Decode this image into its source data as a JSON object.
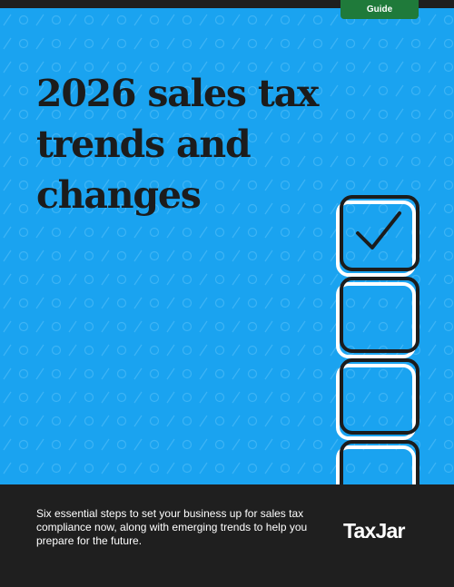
{
  "badge": {
    "label": "Guide"
  },
  "title": {
    "lines": [
      "2026 sales tax",
      "trends and",
      "changes"
    ]
  },
  "footer": {
    "description": "Six essential steps to set your business up for sales tax compliance now, along with emerging trends to help you prepare for the future.",
    "logo": "TaxJar"
  },
  "colors": {
    "hero_background": "#1aa3f0",
    "footer_background": "#1f1f1f",
    "badge": "#1f7a3a",
    "title_text": "#1c1c1c"
  },
  "icons": [
    "checkmark-icon",
    "checkbox-icon"
  ]
}
